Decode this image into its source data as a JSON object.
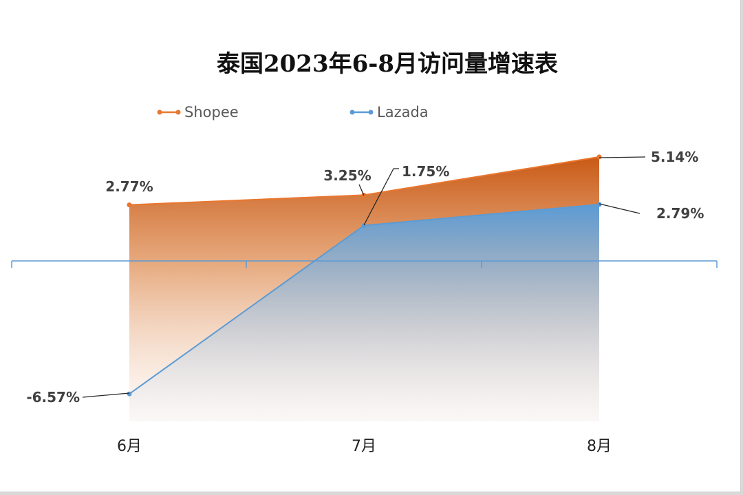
{
  "chart_data": {
    "type": "area",
    "title": "泰国2023年6-8月访问量增速表",
    "categories": [
      "6月",
      "7月",
      "8月"
    ],
    "ylim": [
      -8,
      6
    ],
    "grid": false,
    "legend_position": "top",
    "series": [
      {
        "name": "Shopee",
        "values": [
          2.77,
          3.25,
          5.14
        ],
        "labels": [
          "2.77%",
          "3.25%",
          "5.14%"
        ],
        "color": "#E9772F"
      },
      {
        "name": "Lazada",
        "values": [
          -6.57,
          1.75,
          2.79
        ],
        "labels": [
          "-6.57%",
          "1.75%",
          "2.79%"
        ],
        "color": "#5B9BD5"
      }
    ]
  }
}
